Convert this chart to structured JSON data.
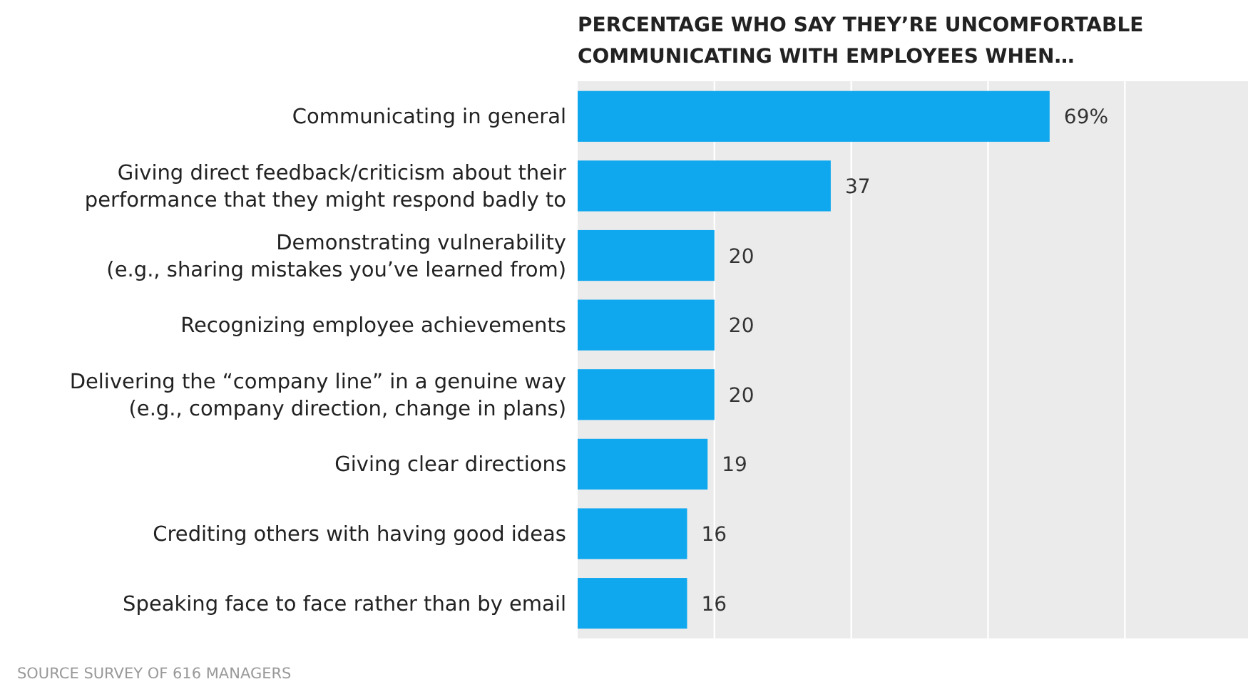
{
  "chart_data": {
    "type": "bar",
    "orientation": "horizontal",
    "title": "PERCENTAGE WHO SAY THEY’RE UNCOMFORTABLE\nCOMMUNICATING WITH EMPLOYEES WHEN…",
    "categories": [
      "Communicating in general",
      "Giving direct feedback/criticism about their\nperformance that they might respond badly to",
      "Demonstrating vulnerability\n(e.g., sharing mistakes you’ve learned from)",
      "Recognizing employee achievements",
      "Delivering the “company line” in a genuine way\n(e.g., company direction, change in plans)",
      "Giving clear directions",
      "Crediting others with having good ideas",
      "Speaking face to face rather than by email"
    ],
    "values": [
      69,
      37,
      20,
      20,
      20,
      19,
      16,
      16
    ],
    "value_labels": [
      "69%",
      "37",
      "20",
      "20",
      "20",
      "19",
      "16",
      "16"
    ],
    "color": "#0fa8ef",
    "xlim": [
      0,
      98
    ],
    "xticks": [
      {
        "value": 20,
        "label": null
      },
      {
        "value": 40,
        "label": null
      },
      {
        "value": 60,
        "label": null
      },
      {
        "value": 80,
        "label": null
      }
    ],
    "grid": "x",
    "tick_labels": "y",
    "annotations": [
      "SOURCE SURVEY OF 616 MANAGERS"
    ]
  }
}
